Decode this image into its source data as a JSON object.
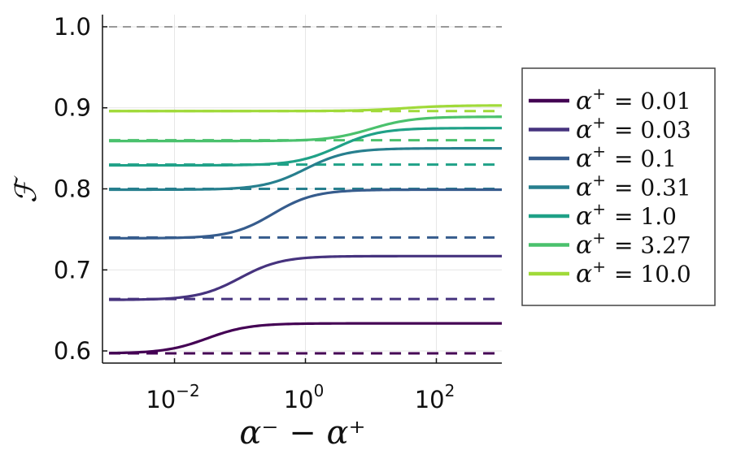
{
  "chart_data": {
    "type": "line",
    "x_scale": "log",
    "xlim_exp": [
      -3.1,
      3.0
    ],
    "ylim": [
      0.585,
      1.015
    ],
    "x_ticks": [
      {
        "exp": -2,
        "base": "10",
        "sup": "−2"
      },
      {
        "exp": 0,
        "base": "10",
        "sup": "0"
      },
      {
        "exp": 2,
        "base": "10",
        "sup": "2"
      }
    ],
    "y_ticks": [
      {
        "value": 0.6,
        "label": "0.6"
      },
      {
        "value": 0.7,
        "label": "0.7"
      },
      {
        "value": 0.8,
        "label": "0.8"
      },
      {
        "value": 0.9,
        "label": "0.9"
      },
      {
        "value": 1.0,
        "label": "1.0"
      }
    ],
    "xlabel": "α⁻ − α⁺",
    "ylabel": "ℱ",
    "grid": true,
    "legend_position": "right-outside",
    "reference_line": {
      "value": 1.0,
      "color": "#999999",
      "style": "dashed"
    },
    "series": [
      {
        "name": "α⁺ = 0.01",
        "color": "#440154",
        "low": 0.597,
        "high": 0.634,
        "mid_exp": -1.5,
        "width": 0.32,
        "baseline": 0.597
      },
      {
        "name": "α⁺ = 0.03",
        "color": "#46337e",
        "low": 0.663,
        "high": 0.717,
        "mid_exp": -1.0,
        "width": 0.32,
        "baseline": 0.664
      },
      {
        "name": "α⁺ = 0.1",
        "color": "#365c8d",
        "low": 0.739,
        "high": 0.799,
        "mid_exp": -0.5,
        "width": 0.32,
        "baseline": 0.74
      },
      {
        "name": "α⁺ = 0.31",
        "color": "#277f8e",
        "low": 0.799,
        "high": 0.85,
        "mid_exp": 0.0,
        "width": 0.32,
        "baseline": 0.8
      },
      {
        "name": "α⁺ = 1.0",
        "color": "#1fa187",
        "low": 0.829,
        "high": 0.875,
        "mid_exp": 0.5,
        "width": 0.32,
        "baseline": 0.83
      },
      {
        "name": "α⁺ = 3.27",
        "color": "#4ac16d",
        "low": 0.859,
        "high": 0.889,
        "mid_exp": 1.0,
        "width": 0.32,
        "baseline": 0.86
      },
      {
        "name": "α⁺ = 10.0",
        "color": "#a0da39",
        "low": 0.896,
        "high": 0.903,
        "mid_exp": 1.5,
        "width": 0.35,
        "baseline": 0.896
      }
    ],
    "legend": [
      {
        "symbol": "α",
        "sup": "+",
        "value": "= 0.01"
      },
      {
        "symbol": "α",
        "sup": "+",
        "value": "= 0.03"
      },
      {
        "symbol": "α",
        "sup": "+",
        "value": "= 0.1"
      },
      {
        "symbol": "α",
        "sup": "+",
        "value": "= 0.31"
      },
      {
        "symbol": "α",
        "sup": "+",
        "value": "= 1.0"
      },
      {
        "symbol": "α",
        "sup": "+",
        "value": "= 3.27"
      },
      {
        "symbol": "α",
        "sup": "+",
        "value": "= 10.0"
      }
    ]
  }
}
